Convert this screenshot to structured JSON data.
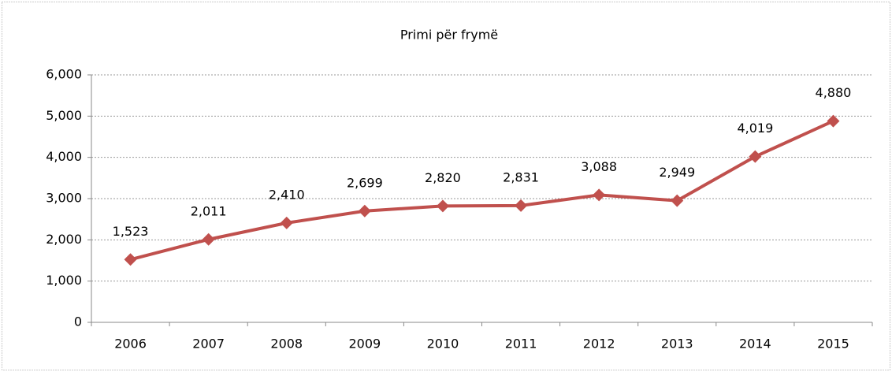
{
  "chart_data": {
    "type": "line",
    "title": "Primi për frymë",
    "categories": [
      "2006",
      "2007",
      "2008",
      "2009",
      "2010",
      "2011",
      "2012",
      "2013",
      "2014",
      "2015"
    ],
    "values": [
      1523,
      2011,
      2410,
      2699,
      2820,
      2831,
      3088,
      2949,
      4019,
      4880
    ],
    "value_labels": [
      "1,523",
      "2,011",
      "2,410",
      "2,699",
      "2,820",
      "2,831",
      "3,088",
      "2,949",
      "4,019",
      "4,880"
    ],
    "color": "#c0504d",
    "ylim": [
      0,
      6000
    ],
    "yticks": [
      0,
      {
        "value": 1000,
        "label": "1,000"
      },
      {
        "value": 2000,
        "label": "2,000"
      },
      {
        "value": 3000,
        "label": "3,000"
      },
      {
        "value": 4000,
        "label": "4,000"
      },
      {
        "value": 5000,
        "label": "5,000"
      },
      {
        "value": 6000,
        "label": "6,000"
      }
    ],
    "grid": true
  }
}
